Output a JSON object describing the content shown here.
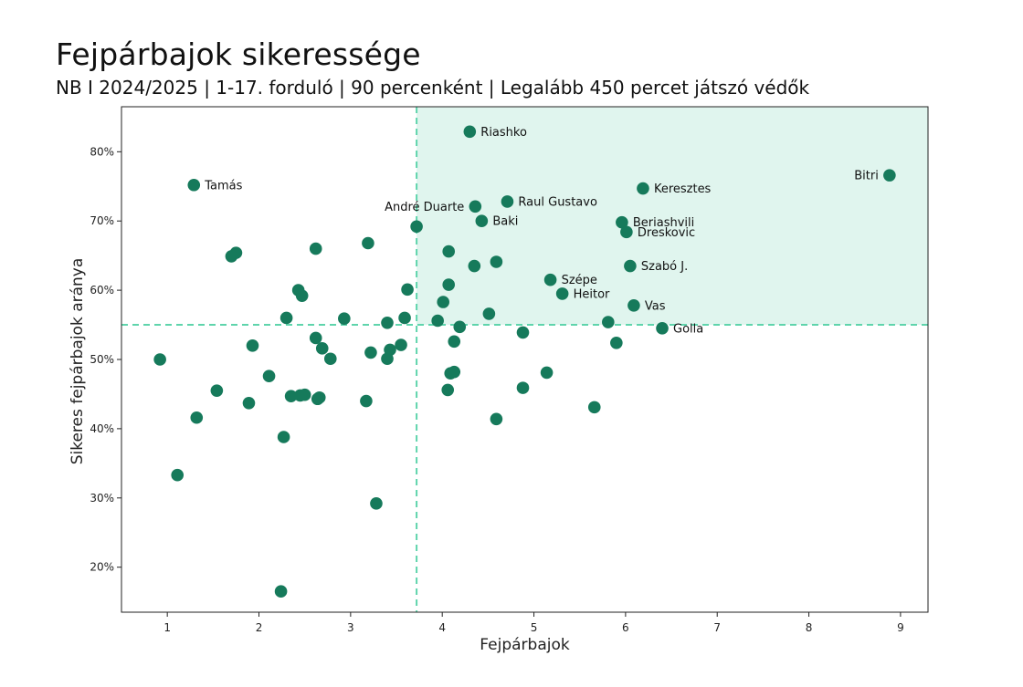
{
  "title": "Fejpárbajok sikeressége",
  "subtitle": "NB I 2024/2025 | 1-17. forduló | 90 percenként | Legalább 450 percet játszó védők",
  "colors": {
    "point": "#167a5b",
    "threshold": "#5fd4ac",
    "quadrant_fill": "#e0f5ee"
  },
  "chart_data": {
    "type": "scatter",
    "xlabel": "Fejpárbajok",
    "ylabel": "Sikeres fejpárbajok aránya",
    "xlim": [
      0.5,
      9.3
    ],
    "ylim": [
      13.5,
      86.5
    ],
    "x_ticks": [
      1,
      2,
      3,
      4,
      5,
      6,
      7,
      8,
      9
    ],
    "y_ticks": [
      20,
      30,
      40,
      50,
      60,
      70,
      80
    ],
    "y_tick_labels": [
      "20%",
      "30%",
      "40%",
      "50%",
      "60%",
      "70%",
      "80%"
    ],
    "thresholds": {
      "x": 3.72,
      "y": 55.0
    },
    "highlight_quadrant": "top-right",
    "grid": false,
    "labeled_points": [
      {
        "name": "Riashko",
        "x": 4.3,
        "y": 82.9,
        "side": "right"
      },
      {
        "name": "Bitri",
        "x": 8.88,
        "y": 76.6,
        "side": "left"
      },
      {
        "name": "Tamás",
        "x": 1.29,
        "y": 75.2,
        "side": "right"
      },
      {
        "name": "Keresztes",
        "x": 6.19,
        "y": 74.7,
        "side": "right"
      },
      {
        "name": "Raul Gustavo",
        "x": 4.71,
        "y": 72.8,
        "side": "right"
      },
      {
        "name": "André Duarte",
        "x": 4.36,
        "y": 72.1,
        "side": "left"
      },
      {
        "name": "Baki",
        "x": 4.43,
        "y": 70.0,
        "side": "right"
      },
      {
        "name": "Beriashvili",
        "x": 5.96,
        "y": 69.8,
        "side": "right"
      },
      {
        "name": "Dreskovic",
        "x": 6.01,
        "y": 68.4,
        "side": "right"
      },
      {
        "name": "Szabó J.",
        "x": 6.05,
        "y": 63.5,
        "side": "right"
      },
      {
        "name": "Szépe",
        "x": 5.18,
        "y": 61.5,
        "side": "right"
      },
      {
        "name": "Heitor",
        "x": 5.31,
        "y": 59.5,
        "side": "right"
      },
      {
        "name": "Vas",
        "x": 6.09,
        "y": 57.8,
        "side": "right"
      },
      {
        "name": "Golla",
        "x": 6.4,
        "y": 54.5,
        "side": "right"
      }
    ],
    "points": [
      [
        3.72,
        69.2
      ],
      [
        4.07,
        65.6
      ],
      [
        4.59,
        64.1
      ],
      [
        4.35,
        63.5
      ],
      [
        4.07,
        60.8
      ],
      [
        4.01,
        58.3
      ],
      [
        4.51,
        56.6
      ],
      [
        3.95,
        55.6
      ],
      [
        4.19,
        54.7
      ],
      [
        4.13,
        52.6
      ],
      [
        4.09,
        48.0
      ],
      [
        4.13,
        48.2
      ],
      [
        4.06,
        45.6
      ],
      [
        4.59,
        41.4
      ],
      [
        4.88,
        53.9
      ],
      [
        4.88,
        45.9
      ],
      [
        5.14,
        48.1
      ],
      [
        5.66,
        43.1
      ],
      [
        5.81,
        55.4
      ],
      [
        5.9,
        52.4
      ],
      [
        3.62,
        60.1
      ],
      [
        3.59,
        56.0
      ],
      [
        3.4,
        55.3
      ],
      [
        3.55,
        52.1
      ],
      [
        3.43,
        51.4
      ],
      [
        3.4,
        50.1
      ],
      [
        3.22,
        51.0
      ],
      [
        3.19,
        66.8
      ],
      [
        3.17,
        44.0
      ],
      [
        3.28,
        29.2
      ],
      [
        2.93,
        55.9
      ],
      [
        2.78,
        50.1
      ],
      [
        2.69,
        51.6
      ],
      [
        2.62,
        53.1
      ],
      [
        2.62,
        66.0
      ],
      [
        2.66,
        44.5
      ],
      [
        2.64,
        44.3
      ],
      [
        2.5,
        44.9
      ],
      [
        2.45,
        44.8
      ],
      [
        2.35,
        44.7
      ],
      [
        2.43,
        60.0
      ],
      [
        2.47,
        59.2
      ],
      [
        2.3,
        56.0
      ],
      [
        2.27,
        38.8
      ],
      [
        2.24,
        16.5
      ],
      [
        2.11,
        47.6
      ],
      [
        1.93,
        52.0
      ],
      [
        1.89,
        43.7
      ],
      [
        1.75,
        65.4
      ],
      [
        1.7,
        64.9
      ],
      [
        1.54,
        45.5
      ],
      [
        1.32,
        41.6
      ],
      [
        1.11,
        33.3
      ],
      [
        0.92,
        50.0
      ]
    ]
  }
}
